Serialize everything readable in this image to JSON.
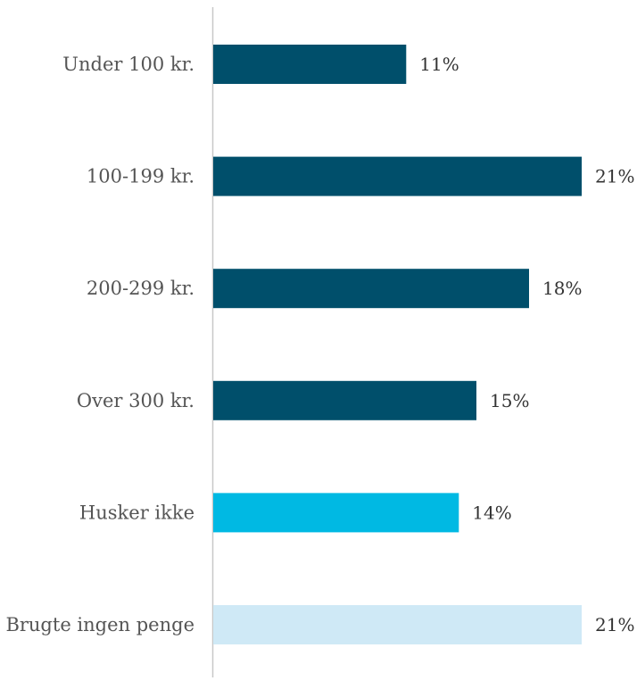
{
  "chart_data": {
    "type": "bar",
    "orientation": "horizontal",
    "categories": [
      "Under 100 kr.",
      "100-199 kr.",
      "200-299 kr.",
      "Over 300 kr.",
      "Husker ikke",
      "Brugte ingen penge"
    ],
    "values": [
      11,
      21,
      18,
      15,
      14,
      21
    ],
    "value_labels": [
      "11%",
      "21%",
      "18%",
      "15%",
      "14%",
      "21%"
    ],
    "bar_colors": [
      "#004f6b",
      "#004f6b",
      "#004f6b",
      "#004f6b",
      "#00b9e3",
      "#cfe9f6"
    ],
    "title": "",
    "xlabel": "",
    "ylabel": "",
    "xlim": [
      0,
      21
    ],
    "grid": false,
    "legend": "none"
  },
  "colors": {
    "axis_line": "#c8c8c8",
    "category_text": "#555555",
    "value_text": "#333333"
  }
}
